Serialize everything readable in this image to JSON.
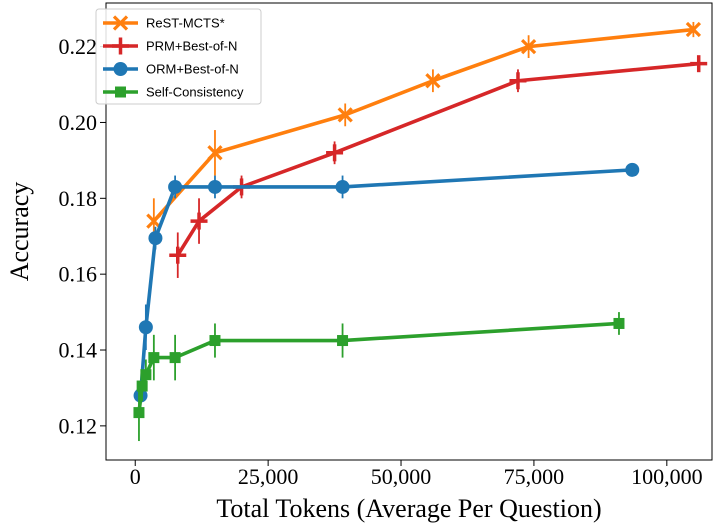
{
  "chart_data": {
    "type": "line",
    "title": "",
    "xlabel": "Total Tokens (Average Per Question)",
    "ylabel": "Accuracy",
    "xlim": [
      -5500,
      108500
    ],
    "ylim": [
      0.111,
      0.2315
    ],
    "xticks": [
      0,
      25000,
      50000,
      75000,
      100000
    ],
    "xtick_labels": [
      "0",
      "25,000",
      "50,000",
      "75,000",
      "100,000"
    ],
    "yticks": [
      0.12,
      0.14,
      0.16,
      0.18,
      0.2,
      0.22
    ],
    "ytick_labels": [
      "0.12",
      "0.14",
      "0.16",
      "0.18",
      "0.20",
      "0.22"
    ],
    "grid": false,
    "legend_position": "top-left",
    "series": [
      {
        "name": "ReST-MCTS*",
        "color": "#ff7f0e",
        "marker": "x",
        "x": [
          3500,
          15000,
          39500,
          56000,
          74000,
          105000
        ],
        "y": [
          0.174,
          0.192,
          0.202,
          0.211,
          0.22,
          0.2245
        ],
        "err": [
          0.006,
          0.006,
          0.003,
          0.003,
          0.003,
          0.002
        ]
      },
      {
        "name": "PRM+Best-of-N",
        "color": "#d62728",
        "marker": "plus",
        "x": [
          8000,
          12000,
          20000,
          37500,
          72000,
          106000
        ],
        "y": [
          0.165,
          0.174,
          0.183,
          0.192,
          0.211,
          0.2155
        ],
        "err": [
          0.006,
          0.006,
          0.003,
          0.003,
          0.003,
          0.002
        ]
      },
      {
        "name": "ORM+Best-of-N",
        "color": "#1f77b4",
        "marker": "circle",
        "x": [
          1000,
          2000,
          3800,
          7500,
          15000,
          39000,
          93500
        ],
        "y": [
          0.128,
          0.146,
          0.1695,
          0.183,
          0.183,
          0.183,
          0.1875
        ],
        "err": [
          0.003,
          0.006,
          0.003,
          0.003,
          0.003,
          0.003,
          0.001
        ]
      },
      {
        "name": "Self-Consistency",
        "color": "#2ca02c",
        "marker": "square",
        "x": [
          700,
          1300,
          2000,
          3500,
          7500,
          15000,
          39000,
          91000
        ],
        "y": [
          0.1235,
          0.1305,
          0.1335,
          0.138,
          0.138,
          0.1425,
          0.1425,
          0.147
        ],
        "err": [
          0.0075,
          0.004,
          0.004,
          0.006,
          0.006,
          0.0045,
          0.0045,
          0.003
        ]
      }
    ]
  }
}
